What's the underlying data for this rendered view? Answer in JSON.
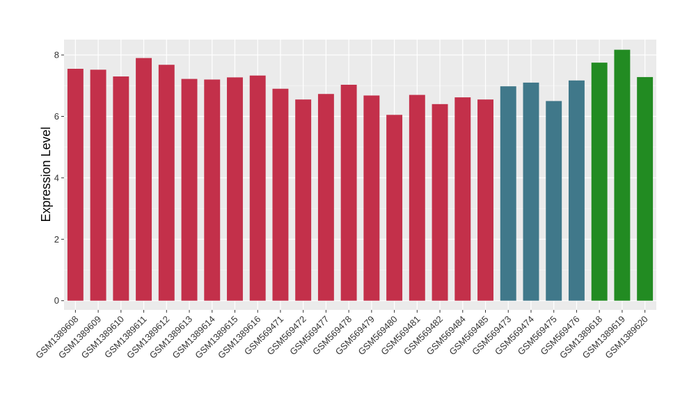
{
  "chart_data": {
    "type": "bar",
    "ylabel": "Expression Level",
    "xlabel": "",
    "ylim": [
      -0.3,
      8.5
    ],
    "yticks": [
      0,
      2,
      4,
      6,
      8
    ],
    "grid": true,
    "categories": [
      "GSM1389608",
      "GSM1389609",
      "GSM1389610",
      "GSM1389611",
      "GSM1389612",
      "GSM1389613",
      "GSM1389614",
      "GSM1389615",
      "GSM1389616",
      "GSM569471",
      "GSM569472",
      "GSM569477",
      "GSM569478",
      "GSM569479",
      "GSM569480",
      "GSM569481",
      "GSM569482",
      "GSM569484",
      "GSM569485",
      "GSM569473",
      "GSM569474",
      "GSM569475",
      "GSM569476",
      "GSM1389618",
      "GSM1389619",
      "GSM1389620"
    ],
    "values": [
      7.55,
      7.52,
      7.3,
      7.9,
      7.68,
      7.22,
      7.2,
      7.27,
      7.33,
      6.9,
      6.55,
      6.73,
      7.03,
      6.68,
      6.05,
      6.7,
      6.4,
      6.62,
      6.55,
      6.98,
      7.1,
      6.5,
      7.17,
      7.75,
      8.17,
      7.28
    ],
    "colors": [
      "#C3304A",
      "#C3304A",
      "#C3304A",
      "#C3304A",
      "#C3304A",
      "#C3304A",
      "#C3304A",
      "#C3304A",
      "#C3304A",
      "#C3304A",
      "#C3304A",
      "#C3304A",
      "#C3304A",
      "#C3304A",
      "#C3304A",
      "#C3304A",
      "#C3304A",
      "#C3304A",
      "#C3304A",
      "#40788A",
      "#40788A",
      "#40788A",
      "#40788A",
      "#228B22",
      "#228B22",
      "#228B22"
    ]
  }
}
